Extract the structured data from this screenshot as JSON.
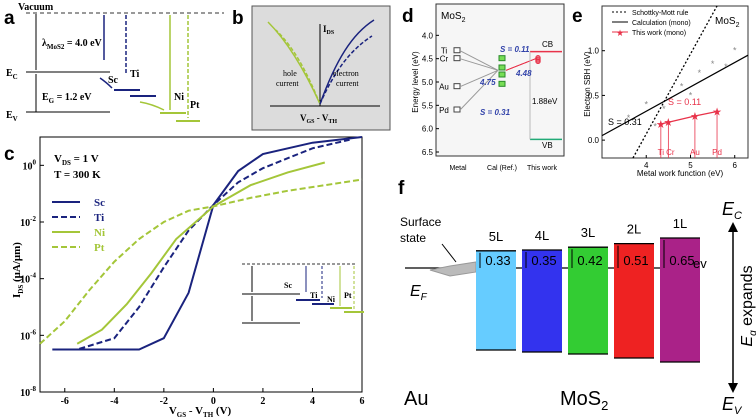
{
  "panels": {
    "a": {
      "label": "a",
      "vacuum": "Vacuum",
      "lambda": "λ",
      "lambda_sub": "MoS2",
      "lambda_value": " = 4.0 eV",
      "ec": "E",
      "ec_sub": "C",
      "eg": "E",
      "eg_sub": "G",
      "eg_value": " = 1.2 eV",
      "ev": "E",
      "ev_sub": "V",
      "metals": [
        "Sc",
        "Ti",
        "Ni",
        "Pt"
      ]
    },
    "b": {
      "label": "b",
      "ylabel": "I",
      "ylabel_sub": "DS",
      "xlabel": "V",
      "xlabel_sub": "GS",
      "xlabel_tail": " - V",
      "xlabel_sub2": "TH",
      "left_text": [
        "hole",
        "current"
      ],
      "right_text": [
        "electron",
        "current"
      ]
    },
    "c": {
      "label": "c",
      "conditions": [
        "V",
        "T = 300 K"
      ],
      "vds_sub": "DS",
      "vds_value": " = 1 V",
      "ylabel": "I",
      "ylabel_sub": "DS",
      "ylabel_unit": " (μA/μm)",
      "xlabel": "V",
      "xlabel_sub": "GS",
      "xlabel_mid": " - V",
      "xlabel_sub2": "TH",
      "xlabel_unit": " (V)",
      "inset_labels": [
        "Sc",
        "Ti",
        "Ni",
        "Pt"
      ]
    },
    "d": {
      "label": "d",
      "title": "MoS",
      "title_sub": "2",
      "ylabel": "Energy level (eV)",
      "metals": [
        "Ti",
        "Cr",
        "Au",
        "Pd"
      ],
      "cb": "CB",
      "vb": "VB",
      "gap": "1.88eV",
      "s1": "S = 0.11",
      "s2": "S = 0.31",
      "v1": "4.75",
      "v2": "4.48"
    },
    "e": {
      "label": "e",
      "ylabel": "Electron SBH (eV)",
      "xlabel": "Metal work function (eV)",
      "title": "MoS",
      "title_sub": "2",
      "s1": "S = 0.31",
      "s2": "S = 0.11",
      "point_labels": [
        "Ti",
        "Cr",
        "Au",
        "Pd"
      ]
    },
    "f": {
      "label": "f",
      "surface_state": [
        "Surface",
        "state"
      ],
      "ef": "E",
      "ef_sub": "F",
      "ec": "E",
      "ec_sub": "C",
      "ev": "E",
      "ev_sub": "V",
      "eg": "E",
      "eg_sub": "g",
      "eg_tail": " expands",
      "ev_unit": "ev",
      "au": "Au",
      "mos2": "MoS",
      "mos2_sub": "2"
    }
  },
  "chart_data": [
    {
      "panel": "c",
      "type": "line",
      "xlabel": "VGS - VTH (V)",
      "ylabel": "IDS (μA/μm)",
      "xlim": [
        -7,
        6
      ],
      "ylim_log10": [
        -8,
        1
      ],
      "yscale": "log",
      "xticks": [
        -6,
        -4,
        -2,
        0,
        2,
        4,
        6
      ],
      "yticks_labels": [
        "10^-8",
        "10^-6",
        "10^-4",
        "10^-2",
        "10^0"
      ],
      "legend": [
        "Sc",
        "Ti",
        "Ni",
        "Pt"
      ],
      "series": [
        {
          "name": "Sc",
          "color": "#1a237e",
          "dash": "solid",
          "points": [
            [
              -6.5,
              -6.5
            ],
            [
              -4.5,
              -6.5
            ],
            [
              -3,
              -6.5
            ],
            [
              -2,
              -6.1
            ],
            [
              -1,
              -4.5
            ],
            [
              0,
              -1.4
            ],
            [
              1,
              -0.2
            ],
            [
              2,
              0.4
            ],
            [
              4,
              0.8
            ],
            [
              6,
              1.0
            ]
          ]
        },
        {
          "name": "Ti",
          "color": "#1a237e",
          "dash": "dashed",
          "points": [
            [
              -6.5,
              -6.5
            ],
            [
              -5.5,
              -6.5
            ],
            [
              -4,
              -6.1
            ],
            [
              -3,
              -5
            ],
            [
              -2,
              -3.6
            ],
            [
              -1,
              -2.3
            ],
            [
              0,
              -1.4
            ],
            [
              1,
              -0.6
            ],
            [
              2,
              -0.1
            ],
            [
              4,
              0.6
            ],
            [
              5.5,
              0.9
            ]
          ]
        },
        {
          "name": "Ni",
          "color": "#a4c639",
          "dash": "solid",
          "points": [
            [
              -5.5,
              -6.3
            ],
            [
              -4.5,
              -5.8
            ],
            [
              -3.5,
              -4.9
            ],
            [
              -2.5,
              -3.8
            ],
            [
              -1.5,
              -2.6
            ],
            [
              0,
              -1.45
            ],
            [
              1.5,
              -0.7
            ],
            [
              3,
              -0.25
            ],
            [
              4.5,
              0.1
            ]
          ]
        },
        {
          "name": "Pt",
          "color": "#a4c639",
          "dash": "dashed",
          "points": [
            [
              -7,
              -6.3
            ],
            [
              -6,
              -5.5
            ],
            [
              -5,
              -4.4
            ],
            [
              -4,
              -3.4
            ],
            [
              -3,
              -2.6
            ],
            [
              -2,
              -2
            ],
            [
              -1,
              -1.6
            ],
            [
              0,
              -1.45
            ],
            [
              1.5,
              -1.15
            ],
            [
              3,
              -0.9
            ],
            [
              4.5,
              -0.7
            ],
            [
              6,
              -0.5
            ]
          ]
        }
      ]
    },
    {
      "panel": "d",
      "type": "scatter",
      "ylabel": "Energy level (eV)",
      "ylim": [
        6.5,
        3.5
      ],
      "yticks": [
        4.0,
        4.5,
        5.0,
        5.5,
        6.0,
        6.5
      ],
      "categories": [
        "Metal",
        "Cal (Ref.)",
        "This work"
      ],
      "metal_levels": [
        {
          "name": "Ti",
          "value": 4.33
        },
        {
          "name": "Cr",
          "value": 4.5
        },
        {
          "name": "Au",
          "value": 5.1
        },
        {
          "name": "Pd",
          "value": 5.6
        }
      ],
      "cb": 4.35,
      "vb": 6.23
    },
    {
      "panel": "e",
      "type": "scatter",
      "xlabel": "Metal work function (eV)",
      "ylabel": "Electron SBH (eV)",
      "xlim": [
        3,
        6.3
      ],
      "ylim": [
        -0.2,
        1.5
      ],
      "xticks": [
        4,
        5,
        6
      ],
      "yticks": [
        0.0,
        0.5,
        1.0
      ],
      "legend": [
        "Schottky-Mott rule",
        "Calculation (mono)",
        "This work (mono)"
      ],
      "series": [
        {
          "name": "Schottky-Mott rule",
          "style": "dotted",
          "points": [
            [
              3.7,
              -0.2
            ],
            [
              5.6,
              1.5
            ]
          ]
        },
        {
          "name": "Calculation (mono)",
          "style": "line",
          "points": [
            [
              3,
              0.05
            ],
            [
              6.3,
              0.95
            ]
          ]
        },
        {
          "name": "This work (mono)",
          "style": "markers",
          "points": [
            [
              4.33,
              0.18
            ],
            [
              4.5,
              0.2
            ],
            [
              5.1,
              0.27
            ],
            [
              5.6,
              0.32
            ]
          ]
        }
      ]
    },
    {
      "panel": "f",
      "type": "bar",
      "categories": [
        "5L",
        "4L",
        "3L",
        "2L",
        "1L"
      ],
      "values": [
        0.33,
        0.35,
        0.42,
        0.51,
        0.65
      ],
      "colors": [
        "#66ccff",
        "#3333ee",
        "#33cc33",
        "#ee2222",
        "#aa2288"
      ]
    }
  ]
}
